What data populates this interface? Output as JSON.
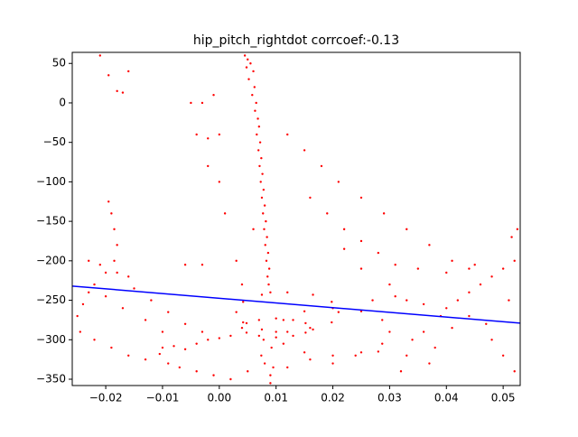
{
  "chart_data": {
    "type": "scatter",
    "title": "hip_pitch_rightdot corrcoef:-0.13",
    "color": "#ff0000",
    "xlim": [
      -0.0259,
      0.053
    ],
    "ylim": [
      -358,
      64
    ],
    "xticks": [
      {
        "value": -0.02,
        "label": "−0.02"
      },
      {
        "value": -0.01,
        "label": "−0.01"
      },
      {
        "value": 0,
        "label": "0.00"
      },
      {
        "value": 0.01,
        "label": "0.01"
      },
      {
        "value": 0.02,
        "label": "0.02"
      },
      {
        "value": 0.03,
        "label": "0.03"
      },
      {
        "value": 0.04,
        "label": "0.04"
      },
      {
        "value": 0.05,
        "label": "0.05"
      }
    ],
    "yticks": [
      50,
      0,
      {
        "value": -50,
        "label": "−50"
      },
      {
        "value": -100,
        "label": "−100"
      },
      {
        "value": -150,
        "label": "−150"
      },
      {
        "value": -200,
        "label": "−200"
      },
      {
        "value": -250,
        "label": "−250"
      },
      {
        "value": -300,
        "label": "−300"
      },
      {
        "value": -350,
        "label": "−350"
      }
    ],
    "x": [
      0.021,
      0.0198,
      0.0165,
      0.012,
      0.0075,
      0.0042,
      0.003,
      0.0042,
      0.0075,
      0.012,
      0.0165,
      0.0198,
      0.016,
      0.0152,
      0.013,
      0.01,
      0.007,
      0.0048,
      0.004,
      0.0048,
      0.007,
      0.01,
      0.013,
      0.0152,
      0.03,
      0.0287,
      0.025,
      0.02,
      0.015,
      0.0113,
      0.01,
      0.0113,
      0.015,
      0.02,
      0.025,
      0.0287,
      -0.0195,
      -0.019,
      -0.0185,
      -0.018,
      -0.0185,
      -0.02,
      -0.022,
      -0.023,
      -0.024,
      -0.025,
      -0.0245,
      -0.022,
      -0.019,
      -0.016,
      -0.013,
      -0.0105,
      -0.023,
      -0.021,
      -0.018,
      -0.016,
      -0.015,
      -0.012,
      -0.009,
      -0.006,
      -0.003,
      -0.02,
      -0.017,
      -0.013,
      -0.01,
      -0.01,
      -0.008,
      -0.006,
      -0.004,
      -0.002,
      0,
      0.002,
      -0.009,
      -0.007,
      -0.004,
      -0.001,
      0.002,
      0.005,
      0.008,
      0.012,
      0.016,
      0.02,
      0.024,
      0.028,
      0.032,
      0.033,
      0.034,
      0.036,
      0.038,
      0.037,
      0.009,
      0.009,
      0.0095,
      0.04,
      0.042,
      0.044,
      0.046,
      0.048,
      0.05,
      0.052,
      0.0515,
      0.0525,
      0.045,
      0.04,
      0.035,
      0.03,
      0.027,
      0.025,
      0.022,
      0.047,
      0.048,
      0.05,
      0.052,
      0.051,
      0.044,
      0.041,
      0.039,
      0.036,
      0.033,
      0.031,
      0.012,
      0.015,
      0.018,
      0.021,
      0.025,
      0.029,
      0.033,
      0.037,
      0.041,
      0.044,
      0.016,
      0.019,
      0.022,
      0.025,
      0.028,
      0.031,
      -0.021,
      -0.0195,
      -0.018,
      -0.017,
      -0.016,
      -0.005,
      -0.003,
      -0.001,
      -0.004,
      -0.002,
      0,
      -0.002,
      0,
      0.001,
      0.003,
      0.004,
      0.006,
      -0.003,
      -0.006,
      0.0045,
      0.005,
      0.0055,
      0.0048,
      0.006,
      0.0052,
      0.0062,
      0.0058,
      0.0065,
      0.0063,
      0.0068,
      0.007,
      0.0066,
      0.0072,
      0.0069,
      0.0074,
      0.0071,
      0.0076,
      0.0073,
      0.0078,
      0.0075,
      0.008,
      0.0077,
      0.0082,
      0.0079,
      0.0084,
      0.0081,
      0.0086,
      0.0083,
      0.0088,
      0.0085,
      0.0087,
      0.009,
      0.0078,
      0.0092,
      0.0074
    ],
    "y": [
      -265,
      -252,
      -243,
      -240,
      -243,
      -252,
      -265,
      -278,
      -287,
      -290,
      -287,
      -278,
      -285,
      -279,
      -275,
      -273,
      -275,
      -279,
      -285,
      -291,
      -295,
      -297,
      -295,
      -291,
      -290,
      -275,
      -264,
      -260,
      -264,
      -275,
      -290,
      -305,
      -316,
      -320,
      -316,
      -305,
      -125,
      -140,
      -160,
      -180,
      -200,
      -215,
      -230,
      -240,
      -255,
      -270,
      -290,
      -300,
      -310,
      -320,
      -325,
      -318,
      -200,
      -205,
      -215,
      -220,
      -235,
      -250,
      -265,
      -280,
      -290,
      -245,
      -260,
      -275,
      -290,
      -310,
      -308,
      -312,
      -305,
      -300,
      -298,
      -295,
      -330,
      -335,
      -340,
      -345,
      -350,
      -340,
      -330,
      -335,
      -325,
      -330,
      -320,
      -315,
      -340,
      -320,
      -300,
      -290,
      -310,
      -330,
      -355,
      -345,
      -335,
      -260,
      -250,
      -240,
      -230,
      -220,
      -210,
      -200,
      -170,
      -160,
      -205,
      -215,
      -210,
      -230,
      -250,
      -210,
      -185,
      -280,
      -300,
      -320,
      -340,
      -250,
      -270,
      -285,
      -270,
      -255,
      -250,
      -245,
      -40,
      -60,
      -80,
      -100,
      -120,
      -140,
      -160,
      -180,
      -200,
      -210,
      -120,
      -140,
      -160,
      -175,
      -190,
      -205,
      60,
      35,
      15,
      13,
      40,
      0,
      0,
      10,
      -40,
      -45,
      -40,
      -80,
      -100,
      -140,
      -200,
      -230,
      -160,
      -205,
      -205,
      60,
      55,
      50,
      45,
      40,
      30,
      20,
      10,
      0,
      -10,
      -20,
      -30,
      -40,
      -50,
      -60,
      -70,
      -80,
      -90,
      -100,
      -110,
      -120,
      -130,
      -140,
      -150,
      -160,
      -170,
      -180,
      -190,
      -200,
      -210,
      -220,
      -230,
      -240,
      -300,
      -310,
      -320
    ],
    "lines": [
      {
        "color": "#0000ff",
        "x": [
          -0.0259,
          0.053
        ],
        "y": [
          -232,
          -279
        ]
      }
    ]
  }
}
